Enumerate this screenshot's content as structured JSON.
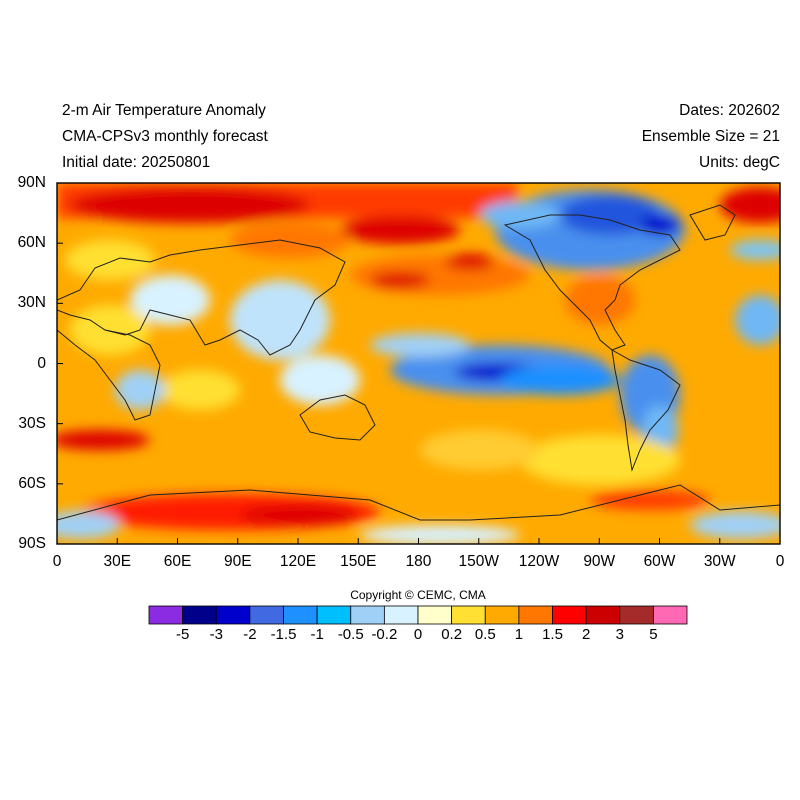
{
  "header": {
    "title": "2-m Air Temperature Anomaly",
    "model": "CMA-CPSv3 monthly forecast",
    "initial_date": "Initial date: 20250801",
    "dates": "Dates: 202602",
    "ensemble": "Ensemble Size = 21",
    "units": "Units: degC"
  },
  "axes": {
    "lat_labels": [
      "90N",
      "60N",
      "30N",
      "0",
      "30S",
      "60S",
      "90S"
    ],
    "lon_labels": [
      "0",
      "30E",
      "60E",
      "90E",
      "120E",
      "150E",
      "180",
      "150W",
      "120W",
      "90W",
      "60W",
      "30W",
      "0"
    ]
  },
  "copyright": "Copyright © CEMC, CMA",
  "colorbar": {
    "colors": [
      "#8b2be2",
      "#00008b",
      "#0000cd",
      "#4169e1",
      "#1e90ff",
      "#00bfff",
      "#a0d0f5",
      "#d8f2ff",
      "#ffffcc",
      "#ffe033",
      "#ffaa00",
      "#ff7700",
      "#ff0000",
      "#cc0000",
      "#a52a2a",
      "#ff69b4"
    ],
    "labels": [
      "-5",
      "-3",
      "-2",
      "-1.5",
      "-1",
      "-0.5",
      "-0.2",
      "0",
      "0.2",
      "0.5",
      "1",
      "1.5",
      "2",
      "3",
      "5"
    ]
  }
}
